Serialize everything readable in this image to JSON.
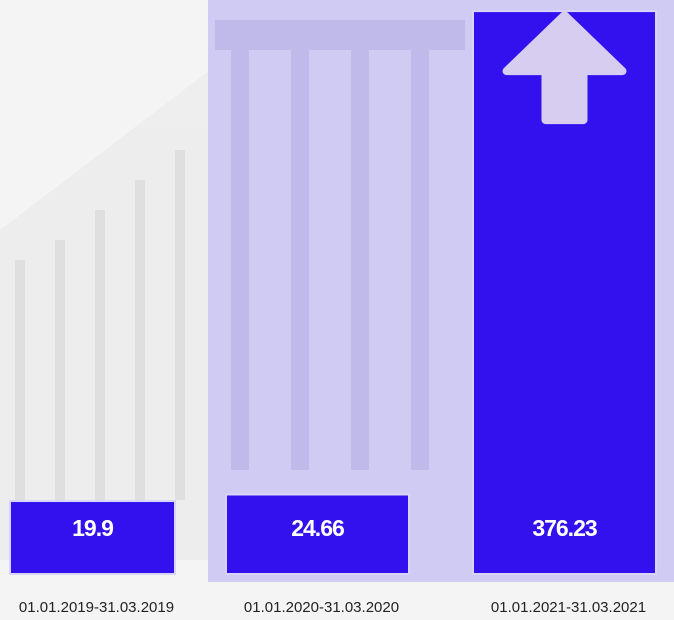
{
  "chart_data": {
    "type": "bar",
    "categories": [
      "01.01.2019-31.03.2019",
      "01.01.2020-31.03.2020",
      "01.01.2021-31.03.2021"
    ],
    "values": [
      19.9,
      24.66,
      376.23
    ],
    "color": "#3311ee"
  }
}
